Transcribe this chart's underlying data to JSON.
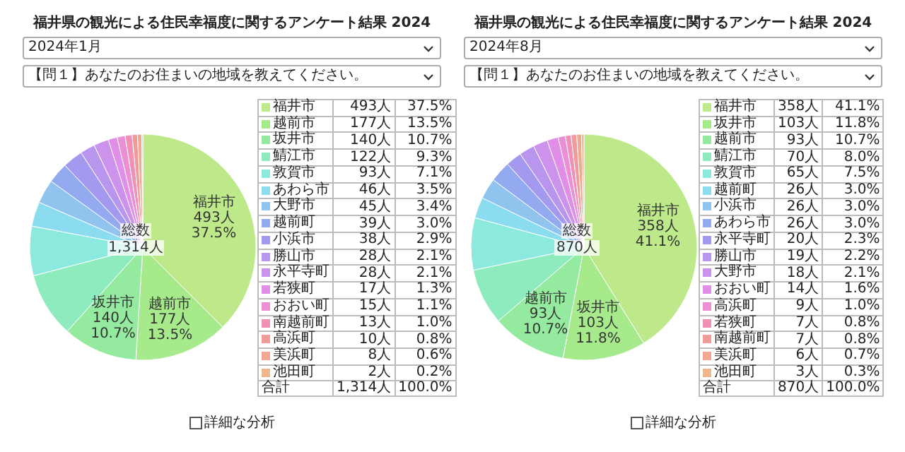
{
  "chart_data": [
    {
      "type": "pie",
      "title": "福井県の観光による住民幸福度に関するアンケート結果 2024",
      "subtitle": "2024年1月",
      "categories": [
        "福井市",
        "越前市",
        "坂井市",
        "鯖江市",
        "敦賀市",
        "あわら市",
        "大野市",
        "越前町",
        "小浜市",
        "勝山市",
        "永平寺町",
        "若狭町",
        "おおい町",
        "南越前町",
        "高浜町",
        "美浜町",
        "池田町"
      ],
      "values": [
        493,
        177,
        140,
        122,
        93,
        46,
        45,
        39,
        38,
        28,
        28,
        17,
        15,
        13,
        10,
        8,
        2
      ],
      "legend": "right",
      "value_labels": [
        "493人 37.5%",
        "177人 13.5%",
        "140人 10.7%",
        "122人 9.3%",
        "93人 7.1%",
        "46人 3.5%",
        "45人 3.4%",
        "39人 3.0%",
        "38人 2.9%",
        "28人 2.1%",
        "28人 2.1%",
        "17人 1.3%",
        "15人 1.1%",
        "13人 1.0%",
        "10人 0.8%",
        "8人 0.6%",
        "2人 0.2%"
      ],
      "colors": [
        "#bde98a",
        "#a6ea8c",
        "#94ea9e",
        "#8eebbd",
        "#8ce9de",
        "#8cdcf0",
        "#90c4ee",
        "#94aaf0",
        "#a39af0",
        "#b896ee",
        "#cc92ec",
        "#e08ee8",
        "#ec8ed4",
        "#f090b4",
        "#f09a9a",
        "#f0a890",
        "#efb58c"
      ],
      "annotations": [
        "【問１】あなたのお住まいの地域を教えてください。",
        "総数",
        "1,314人",
        "合計",
        "1,314人",
        "100.0%",
        "詳細な分析"
      ]
    },
    {
      "type": "pie",
      "title": "福井県の観光による住民幸福度に関するアンケート結果 2024",
      "subtitle": "2024年8月",
      "categories": [
        "福井市",
        "坂井市",
        "越前市",
        "鯖江市",
        "敦賀市",
        "越前町",
        "小浜市",
        "あわら市",
        "永平寺町",
        "勝山市",
        "大野市",
        "おおい町",
        "高浜町",
        "若狭町",
        "南越前町",
        "美浜町",
        "池田町"
      ],
      "values": [
        358,
        103,
        93,
        70,
        65,
        26,
        26,
        26,
        20,
        19,
        18,
        14,
        9,
        7,
        7,
        6,
        3
      ],
      "legend": "right",
      "value_labels": [
        "358人 41.1%",
        "103人 11.8%",
        "93人 10.7%",
        "70人 8.0%",
        "65人 7.5%",
        "26人 3.0%",
        "26人 3.0%",
        "26人 3.0%",
        "20人 2.3%",
        "19人 2.2%",
        "18人 2.1%",
        "14人 1.6%",
        "9人 1.0%",
        "7人 0.8%",
        "7人 0.8%",
        "6人 0.7%",
        "3人 0.3%"
      ],
      "colors": [
        "#bde98a",
        "#a6ea8c",
        "#94ea9e",
        "#8eebbd",
        "#8ce9de",
        "#8cdcf0",
        "#90c4ee",
        "#94aaf0",
        "#a39af0",
        "#b896ee",
        "#cc92ec",
        "#e08ee8",
        "#ec8ed4",
        "#f090b4",
        "#f09a9a",
        "#f0a890",
        "#efb58c"
      ],
      "annotations": [
        "【問１】あなたのお住まいの地域を教えてください。",
        "総数",
        "870人",
        "合計",
        "870人",
        "100.0%",
        "詳細な分析"
      ]
    }
  ]
}
